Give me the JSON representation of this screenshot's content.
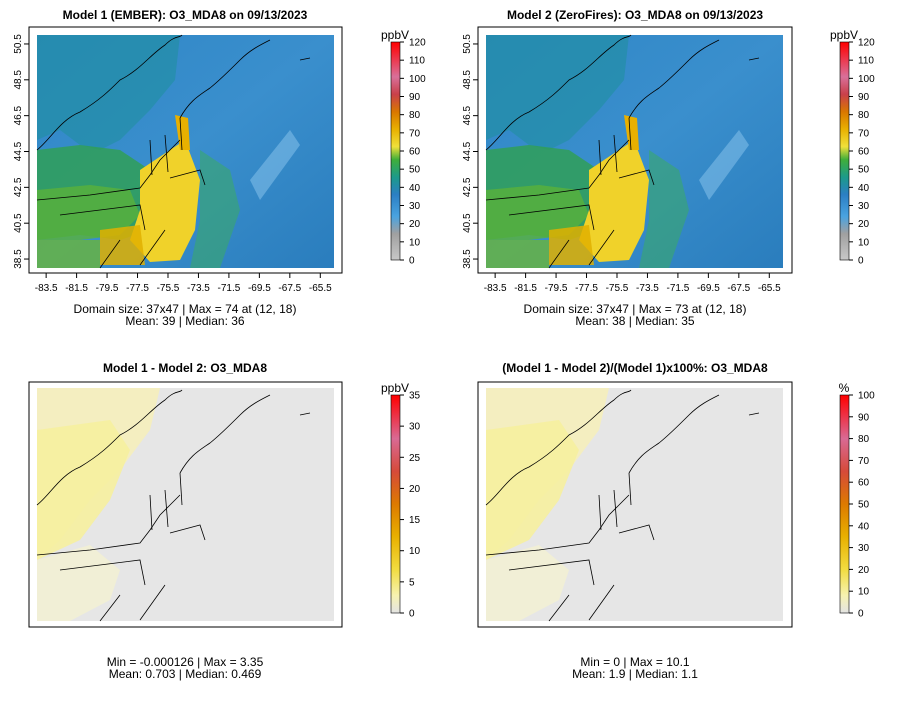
{
  "chart_data": [
    {
      "type": "heatmap",
      "title": "Model 1 (EMBER): O3_MDA8 on 09/13/2023",
      "x_ticks": [
        "-83.5",
        "-81.5",
        "-79.5",
        "-77.5",
        "-75.5",
        "-73.5",
        "-71.5",
        "-69.5",
        "-67.5",
        "-65.5"
      ],
      "y_ticks": [
        "38.5",
        "40.5",
        "42.5",
        "44.5",
        "46.5",
        "48.5",
        "50.5"
      ],
      "xlim": [
        -84.1,
        -64.6
      ],
      "ylim": [
        38.0,
        51.0
      ],
      "legend": {
        "unit": "ppbV",
        "ticks": [
          "0",
          "10",
          "20",
          "30",
          "40",
          "50",
          "60",
          "70",
          "80",
          "90",
          "100",
          "110",
          "120"
        ],
        "range": [
          0,
          120
        ],
        "palette": [
          "#bfbfbf",
          "#4a90d9",
          "#1f78b4",
          "#33a02c",
          "#f2d024",
          "#e8a000",
          "#d94400",
          "#e0607e",
          "#ff1010"
        ]
      },
      "caption_line1": "Domain size: 37x47 | Max = 74 at (12, 18)",
      "caption_line2": "Mean: 39 |  Median: 36",
      "domain_size": "37x47",
      "max": 74,
      "max_at": "(12, 18)",
      "mean": 39,
      "median": 36
    },
    {
      "type": "heatmap",
      "title": "Model 2 (ZeroFires): O3_MDA8 on 09/13/2023",
      "x_ticks": [
        "-83.5",
        "-81.5",
        "-79.5",
        "-77.5",
        "-75.5",
        "-73.5",
        "-71.5",
        "-69.5",
        "-67.5",
        "-65.5"
      ],
      "y_ticks": [
        "38.5",
        "40.5",
        "42.5",
        "44.5",
        "46.5",
        "48.5",
        "50.5"
      ],
      "xlim": [
        -84.1,
        -64.6
      ],
      "ylim": [
        38.0,
        51.0
      ],
      "legend": {
        "unit": "ppbV",
        "ticks": [
          "0",
          "10",
          "20",
          "30",
          "40",
          "50",
          "60",
          "70",
          "80",
          "90",
          "100",
          "110",
          "120"
        ],
        "range": [
          0,
          120
        ],
        "palette": [
          "#bfbfbf",
          "#4a90d9",
          "#1f78b4",
          "#33a02c",
          "#f2d024",
          "#e8a000",
          "#d94400",
          "#e0607e",
          "#ff1010"
        ]
      },
      "caption_line1": "Domain size: 37x47 | Max = 73 at (12, 18)",
      "caption_line2": "Mean: 38 |  Median: 35",
      "domain_size": "37x47",
      "max": 73,
      "max_at": "(12, 18)",
      "mean": 38,
      "median": 35
    },
    {
      "type": "heatmap",
      "title": "Model 1 - Model 2: O3_MDA8",
      "legend": {
        "unit": "ppbV",
        "ticks": [
          "0",
          "5",
          "10",
          "15",
          "20",
          "25",
          "30",
          "35"
        ],
        "range": [
          0,
          35
        ],
        "palette": [
          "#e6e6e6",
          "#f5ef9a",
          "#f2d024",
          "#e8a000",
          "#d96a00",
          "#d9507a",
          "#ff1010"
        ]
      },
      "caption_line1": "Min = -0.000126 | Max = 3.35",
      "caption_line2": "Mean: 0.703 |  Median: 0.469",
      "min": -0.000126,
      "max": 3.35,
      "mean": 0.703,
      "median": 0.469
    },
    {
      "type": "heatmap",
      "title": "(Model 1 - Model 2)/(Model 1)x100%: O3_MDA8",
      "legend": {
        "unit": "%",
        "ticks": [
          "0",
          "10",
          "20",
          "30",
          "40",
          "50",
          "60",
          "70",
          "80",
          "90",
          "100"
        ],
        "range": [
          0,
          100
        ],
        "palette": [
          "#e6e6e6",
          "#f5ef9a",
          "#f2d024",
          "#e8a000",
          "#d96a00",
          "#d9507a",
          "#ff1010"
        ]
      },
      "caption_line1": "Min = 0 | Max = 10.1",
      "caption_line2": "Mean: 1.9 |  Median: 1.1",
      "min": 0,
      "max": 10.1,
      "mean": 1.9,
      "median": 1.1
    }
  ]
}
